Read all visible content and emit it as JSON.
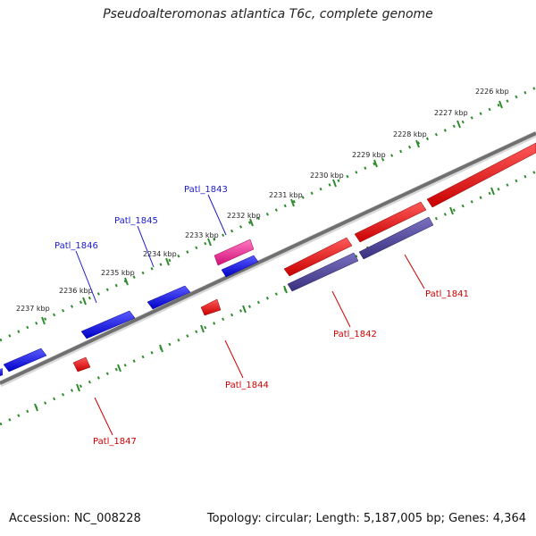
{
  "title": "Pseudoalteromonas atlantica T6c, complete genome",
  "accession": "Accession: NC_008228",
  "stats": "Topology: circular; Length: 5,187,005 bp; Genes: 4,364",
  "colors": {
    "backbone": "#7a7a7a",
    "ticks": "#2e8b2e",
    "forward_gene": "#0000ee",
    "reverse_gene": "#ee0000",
    "highlight_gene": "#e0208f",
    "rna_gene": "#4a4090",
    "label_blue": "#1a1acc",
    "label_red": "#cc0000"
  },
  "ticks": [
    "2226 kbp",
    "2227 kbp",
    "2228 kbp",
    "2229 kbp",
    "2230 kbp",
    "2231 kbp",
    "2232 kbp",
    "2233 kbp",
    "2234 kbp",
    "2235 kbp",
    "2236 kbp",
    "2237 kbp"
  ],
  "gene_labels": {
    "top": [
      "Patl_1843",
      "Patl_1845",
      "Patl_1846"
    ],
    "bottom": [
      "Patl_1841",
      "Patl_1842",
      "Patl_1844",
      "Patl_1847"
    ]
  }
}
